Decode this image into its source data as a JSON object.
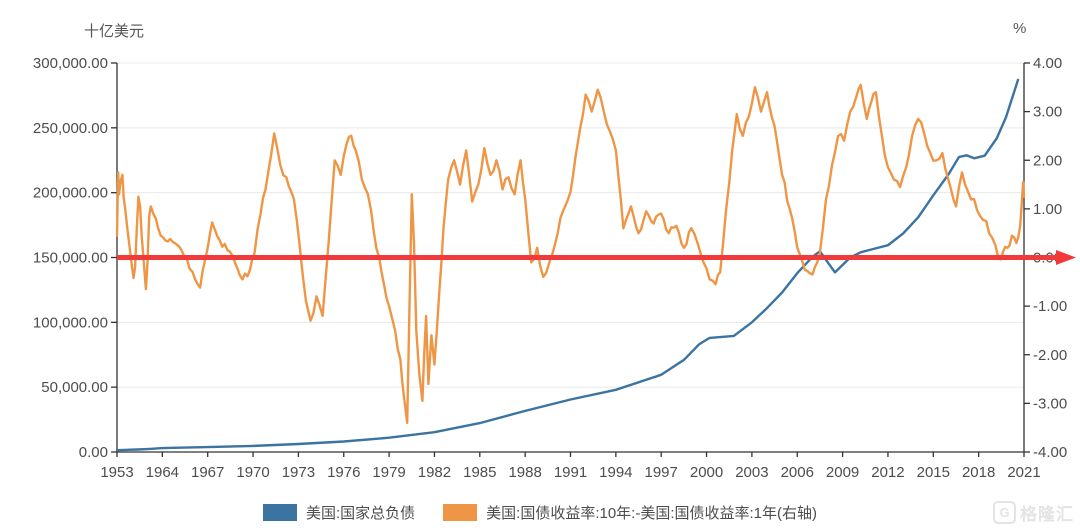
{
  "units": {
    "left": "十亿美元",
    "right": "%"
  },
  "legend": [
    {
      "label": "美国:国家总负债",
      "color": "#3b73a1"
    },
    {
      "label": "美国:国债收益率:10年:-美国:国债收益率:1年(右轴)",
      "color": "#ef9646"
    }
  ],
  "watermark": {
    "text": "格隆汇",
    "icon": "gelonghui-logo-icon",
    "icon_glyph": "G"
  },
  "chart_data": {
    "type": "line",
    "title": "",
    "grid": "horizontal",
    "legend_position": "bottom-center",
    "x_axis": {
      "tick_years": [
        1953,
        1964,
        1967,
        1970,
        1973,
        1976,
        1979,
        1982,
        1985,
        1988,
        1991,
        1994,
        1997,
        2000,
        2003,
        2006,
        2009,
        2012,
        2015,
        2018,
        2021
      ],
      "tick_labels": [
        "1953",
        "1964",
        "1967",
        "1970",
        "1973",
        "1976",
        "1979",
        "1982",
        "1985",
        "1988",
        "1991",
        "1994",
        "1997",
        "2000",
        "2003",
        "2006",
        "2009",
        "2012",
        "2015",
        "2018",
        "2021"
      ]
    },
    "left_axis": {
      "title": "十亿美元",
      "min": 0,
      "max": 300000,
      "tick_step": 50000,
      "tick_labels": [
        "0.00",
        "50,000.00",
        "100,000.00",
        "150,000.00",
        "200,000.00",
        "250,000.00",
        "300,000.00"
      ]
    },
    "right_axis": {
      "title": "%",
      "min": -4,
      "max": 4,
      "tick_step": 1,
      "tick_labels": [
        "-4.00",
        "-3.00",
        "-2.00",
        "-1.00",
        "0.00",
        "1.00",
        "2.00",
        "3.00",
        "4.00"
      ]
    },
    "zero_line": {
      "axis": "right",
      "value": 0,
      "color": "#f13b3b",
      "style": "arrow-right"
    },
    "colors": {
      "debt": "#3b73a1",
      "spread": "#ef9646",
      "grid": "#e9e9e9",
      "axis": "#333333",
      "tick_text": "#4d4d4d"
    },
    "series": [
      {
        "name": "美国:国家总负债",
        "axis": "left",
        "color": "#3b73a1",
        "style": "smooth",
        "points": [
          [
            1953,
            1400
          ],
          [
            1955,
            1600
          ],
          [
            1958,
            1900
          ],
          [
            1961,
            2400
          ],
          [
            1964,
            3000
          ],
          [
            1967,
            3800
          ],
          [
            1970,
            4700
          ],
          [
            1973,
            6200
          ],
          [
            1976,
            8100
          ],
          [
            1979,
            11000
          ],
          [
            1982,
            15300
          ],
          [
            1985,
            22300
          ],
          [
            1988,
            31700
          ],
          [
            1991,
            40500
          ],
          [
            1994,
            48000
          ],
          [
            1997,
            59500
          ],
          [
            1998.5,
            71000
          ],
          [
            1999.5,
            83000
          ],
          [
            2000.2,
            88000
          ],
          [
            2001.8,
            89500
          ],
          [
            2003,
            100000
          ],
          [
            2004,
            111000
          ],
          [
            2005,
            123000
          ],
          [
            2006,
            138000
          ],
          [
            2007.0,
            150500
          ],
          [
            2007.5,
            154800
          ],
          [
            2008.5,
            138500
          ],
          [
            2009.5,
            150000
          ],
          [
            2010.2,
            154000
          ],
          [
            2011,
            156500
          ],
          [
            2012,
            159500
          ],
          [
            2013,
            168500
          ],
          [
            2014,
            181000
          ],
          [
            2015,
            198000
          ],
          [
            2016,
            214000
          ],
          [
            2016.7,
            227500
          ],
          [
            2017.2,
            228800
          ],
          [
            2017.7,
            226500
          ],
          [
            2018.4,
            228500
          ],
          [
            2019.2,
            242000
          ],
          [
            2019.8,
            258000
          ],
          [
            2020.6,
            287000
          ]
        ]
      },
      {
        "name": "美国:国债收益率:10年:-美国:国债收益率:1年(右轴)",
        "axis": "right",
        "color": "#ef9646",
        "style": "jagged",
        "points": [
          [
            1953.0,
            0.45
          ],
          [
            1953.15,
            1.15
          ],
          [
            1953.3,
            1.75
          ],
          [
            1953.5,
            1.3
          ],
          [
            1953.75,
            1.5
          ],
          [
            1954.0,
            1.6
          ],
          [
            1954.3,
            1.7
          ],
          [
            1954.6,
            1.25
          ],
          [
            1955.0,
            1.0
          ],
          [
            1955.5,
            0.6
          ],
          [
            1956.0,
            0.25
          ],
          [
            1956.5,
            -0.1
          ],
          [
            1957.0,
            -0.42
          ],
          [
            1957.4,
            -0.2
          ],
          [
            1957.8,
            0.6
          ],
          [
            1958.2,
            1.25
          ],
          [
            1958.6,
            1.05
          ],
          [
            1959.0,
            0.45
          ],
          [
            1959.5,
            -0.1
          ],
          [
            1960.0,
            -0.65
          ],
          [
            1960.4,
            -0.1
          ],
          [
            1960.8,
            0.85
          ],
          [
            1961.2,
            1.05
          ],
          [
            1961.8,
            0.9
          ],
          [
            1962.4,
            0.8
          ],
          [
            1963.0,
            0.6
          ],
          [
            1963.6,
            0.45
          ],
          [
            1964.2,
            0.35
          ],
          [
            1965.0,
            0.25
          ],
          [
            1965.6,
            0.0
          ],
          [
            1966.0,
            -0.3
          ],
          [
            1966.5,
            -0.62
          ],
          [
            1967.0,
            0.2
          ],
          [
            1967.3,
            0.72
          ],
          [
            1967.8,
            0.35
          ],
          [
            1968.3,
            0.15
          ],
          [
            1968.8,
            -0.1
          ],
          [
            1969.3,
            -0.45
          ],
          [
            1969.8,
            -0.25
          ],
          [
            1970.1,
            0.1
          ],
          [
            1970.5,
            0.9
          ],
          [
            1971.0,
            1.75
          ],
          [
            1971.4,
            2.55
          ],
          [
            1971.8,
            1.9
          ],
          [
            1972.2,
            1.65
          ],
          [
            1972.7,
            1.2
          ],
          [
            1973.1,
            0.2
          ],
          [
            1973.5,
            -0.9
          ],
          [
            1973.8,
            -1.3
          ],
          [
            1974.2,
            -0.8
          ],
          [
            1974.6,
            -1.2
          ],
          [
            1975.0,
            0.3
          ],
          [
            1975.4,
            2.0
          ],
          [
            1975.8,
            1.7
          ],
          [
            1976.2,
            2.35
          ],
          [
            1976.5,
            2.5
          ],
          [
            1976.8,
            2.2
          ],
          [
            1977.2,
            1.6
          ],
          [
            1977.6,
            1.3
          ],
          [
            1978.0,
            0.5
          ],
          [
            1978.5,
            -0.3
          ],
          [
            1979.0,
            -1.0
          ],
          [
            1979.4,
            -1.5
          ],
          [
            1979.75,
            -2.1
          ],
          [
            1980.0,
            -2.9
          ],
          [
            1980.2,
            -3.4
          ],
          [
            1980.35,
            -1.0
          ],
          [
            1980.5,
            1.3
          ],
          [
            1980.65,
            0.3
          ],
          [
            1980.8,
            -1.5
          ],
          [
            1981.0,
            -2.4
          ],
          [
            1981.2,
            -2.95
          ],
          [
            1981.45,
            -1.2
          ],
          [
            1981.6,
            -2.6
          ],
          [
            1981.8,
            -1.6
          ],
          [
            1982.0,
            -2.2
          ],
          [
            1982.3,
            -0.8
          ],
          [
            1982.6,
            0.6
          ],
          [
            1982.9,
            1.6
          ],
          [
            1983.3,
            2.0
          ],
          [
            1983.7,
            1.5
          ],
          [
            1984.1,
            2.2
          ],
          [
            1984.5,
            1.15
          ],
          [
            1984.9,
            1.5
          ],
          [
            1985.3,
            2.25
          ],
          [
            1985.7,
            1.7
          ],
          [
            1986.1,
            2.0
          ],
          [
            1986.5,
            1.4
          ],
          [
            1986.9,
            1.65
          ],
          [
            1987.3,
            1.3
          ],
          [
            1987.7,
            2.0
          ],
          [
            1988.0,
            1.2
          ],
          [
            1988.4,
            -0.1
          ],
          [
            1988.8,
            0.2
          ],
          [
            1989.2,
            -0.4
          ],
          [
            1989.6,
            -0.1
          ],
          [
            1990.0,
            0.3
          ],
          [
            1990.5,
            0.95
          ],
          [
            1991.0,
            1.35
          ],
          [
            1991.5,
            2.4
          ],
          [
            1992.0,
            3.35
          ],
          [
            1992.4,
            3.0
          ],
          [
            1992.8,
            3.45
          ],
          [
            1993.2,
            3.0
          ],
          [
            1993.6,
            2.6
          ],
          [
            1994.0,
            2.2
          ],
          [
            1994.5,
            0.6
          ],
          [
            1995.0,
            1.05
          ],
          [
            1995.5,
            0.5
          ],
          [
            1996.0,
            0.95
          ],
          [
            1996.5,
            0.7
          ],
          [
            1997.0,
            0.9
          ],
          [
            1997.5,
            0.5
          ],
          [
            1998.0,
            0.65
          ],
          [
            1998.5,
            0.2
          ],
          [
            1999.0,
            0.6
          ],
          [
            1999.4,
            0.3
          ],
          [
            1999.8,
            -0.1
          ],
          [
            2000.2,
            -0.45
          ],
          [
            2000.6,
            -0.55
          ],
          [
            2000.9,
            -0.3
          ],
          [
            2001.3,
            1.0
          ],
          [
            2001.7,
            2.2
          ],
          [
            2002.0,
            2.95
          ],
          [
            2002.4,
            2.5
          ],
          [
            2002.8,
            2.9
          ],
          [
            2003.2,
            3.5
          ],
          [
            2003.6,
            3.0
          ],
          [
            2004.0,
            3.4
          ],
          [
            2004.5,
            2.7
          ],
          [
            2005.0,
            1.7
          ],
          [
            2005.5,
            1.0
          ],
          [
            2006.0,
            0.2
          ],
          [
            2006.5,
            -0.25
          ],
          [
            2007.0,
            -0.35
          ],
          [
            2007.5,
            0.1
          ],
          [
            2007.9,
            1.2
          ],
          [
            2008.3,
            1.9
          ],
          [
            2008.7,
            2.5
          ],
          [
            2009.1,
            2.4
          ],
          [
            2009.5,
            3.0
          ],
          [
            2009.9,
            3.3
          ],
          [
            2010.2,
            3.55
          ],
          [
            2010.6,
            2.85
          ],
          [
            2010.9,
            3.2
          ],
          [
            2011.2,
            3.4
          ],
          [
            2011.6,
            2.5
          ],
          [
            2012.0,
            1.85
          ],
          [
            2012.4,
            1.6
          ],
          [
            2012.8,
            1.45
          ],
          [
            2013.2,
            1.85
          ],
          [
            2013.6,
            2.5
          ],
          [
            2014.0,
            2.85
          ],
          [
            2014.4,
            2.55
          ],
          [
            2014.8,
            2.15
          ],
          [
            2015.2,
            2.0
          ],
          [
            2015.6,
            2.15
          ],
          [
            2016.0,
            1.6
          ],
          [
            2016.5,
            1.05
          ],
          [
            2016.9,
            1.75
          ],
          [
            2017.3,
            1.35
          ],
          [
            2017.7,
            1.2
          ],
          [
            2018.1,
            0.85
          ],
          [
            2018.5,
            0.75
          ],
          [
            2018.9,
            0.4
          ],
          [
            2019.3,
            0.0
          ],
          [
            2019.6,
            0.1
          ],
          [
            2019.9,
            0.2
          ],
          [
            2020.2,
            0.45
          ],
          [
            2020.5,
            0.3
          ],
          [
            2020.75,
            0.65
          ],
          [
            2020.95,
            1.55
          ],
          [
            2021.0,
            1.25
          ]
        ]
      }
    ]
  }
}
